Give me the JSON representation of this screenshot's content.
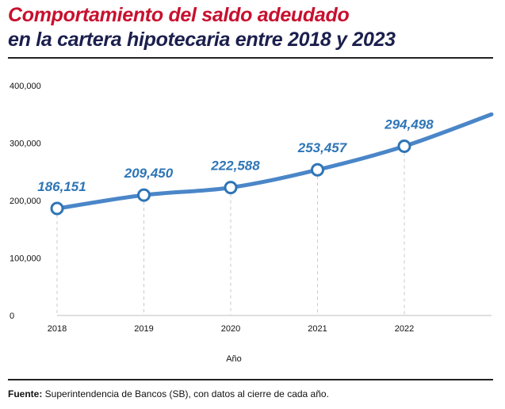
{
  "header": {
    "title_line1": "Comportamiento del saldo adeudado",
    "title_line2": "en la cartera hipotecaria entre 2018 y 2023"
  },
  "footer": {
    "source_label": "Fuente:",
    "source_text": " Superintendencia de Bancos (SB), con datos al cierre de cada año."
  },
  "colors": {
    "title_red": "#c8102e",
    "title_navy": "#1b1f4d",
    "line_blue": "#4a86c8",
    "label_blue": "#2e75b6"
  },
  "chart_data": {
    "type": "line",
    "title": "Comportamiento del saldo adeudado en la cartera hipotecaria entre 2018 y 2023",
    "xlabel": "Año",
    "ylabel": "",
    "x": [
      "2018",
      "2019",
      "2020",
      "2021",
      "2022"
    ],
    "values": [
      186151,
      209450,
      222588,
      253457,
      294498
    ],
    "value_labels": [
      "186,151",
      "209,450",
      "222,588",
      "253,457",
      "294,498"
    ],
    "extension_end_value": 350000,
    "ylim": [
      0,
      400000
    ],
    "yticks": [
      0,
      100000,
      200000,
      300000,
      400000
    ],
    "ytick_labels": [
      "0",
      "100,000",
      "200,000",
      "300,000",
      "400,000"
    ],
    "grid": false
  }
}
